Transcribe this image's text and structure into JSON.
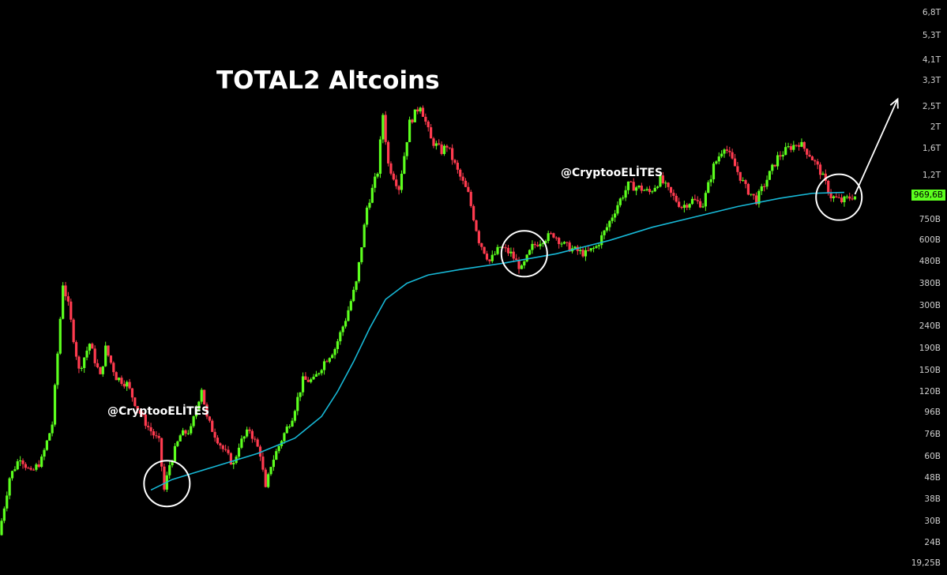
{
  "title": "TOTAL2 Altcoins",
  "watermarks": [
    "@CryptooELİTES",
    "@CryptooELİTES"
  ],
  "colors": {
    "background": "#000000",
    "up_candle": "#5cff1e",
    "down_candle": "#ff3b4f",
    "moving_average": "#17b8d6",
    "annotation": "#ffffff",
    "price_tag": "#5cff1e"
  },
  "chart_data": {
    "type": "candlestick",
    "scale": "log",
    "ylim": [
      17000000000,
      7500000000000
    ],
    "y_ticks": [
      {
        "value": 6800000000000,
        "label": "6,8T"
      },
      {
        "value": 5300000000000,
        "label": "5,3T"
      },
      {
        "value": 4100000000000,
        "label": "4,1T"
      },
      {
        "value": 3300000000000,
        "label": "3,3T"
      },
      {
        "value": 2500000000000,
        "label": "2,5T"
      },
      {
        "value": 2000000000000,
        "label": "2T"
      },
      {
        "value": 1600000000000,
        "label": "1,6T"
      },
      {
        "value": 1200000000000,
        "label": "1,2T"
      },
      {
        "value": 750000000000,
        "label": "750B"
      },
      {
        "value": 600000000000,
        "label": "600B"
      },
      {
        "value": 480000000000,
        "label": "480B"
      },
      {
        "value": 380000000000,
        "label": "380B"
      },
      {
        "value": 300000000000,
        "label": "300B"
      },
      {
        "value": 240000000000,
        "label": "240B"
      },
      {
        "value": 190000000000,
        "label": "190B"
      },
      {
        "value": 150000000000,
        "label": "150B"
      },
      {
        "value": 120000000000,
        "label": "120B"
      },
      {
        "value": 96000000000,
        "label": "96B"
      },
      {
        "value": 76000000000,
        "label": "76B"
      },
      {
        "value": 60000000000,
        "label": "60B"
      },
      {
        "value": 48000000000,
        "label": "48B"
      },
      {
        "value": 38000000000,
        "label": "38B"
      },
      {
        "value": 30000000000,
        "label": "30B"
      },
      {
        "value": 24000000000,
        "label": "24B"
      },
      {
        "value": 19250000000,
        "label": "19,25B"
      }
    ],
    "current_price": {
      "value": 969600000000,
      "label": "969,6B"
    },
    "price_path": [
      [
        0,
        26
      ],
      [
        2,
        48
      ],
      [
        4,
        60
      ],
      [
        6,
        50
      ],
      [
        8,
        58
      ],
      [
        10,
        85
      ],
      [
        12,
        380
      ],
      [
        13,
        300
      ],
      [
        15,
        150
      ],
      [
        17,
        200
      ],
      [
        19,
        140
      ],
      [
        20,
        190
      ],
      [
        22,
        140
      ],
      [
        24,
        130
      ],
      [
        26,
        100
      ],
      [
        28,
        82
      ],
      [
        30,
        70
      ],
      [
        31,
        42
      ],
      [
        32,
        55
      ],
      [
        34,
        75
      ],
      [
        36,
        80
      ],
      [
        38,
        125
      ],
      [
        39,
        90
      ],
      [
        40,
        80
      ],
      [
        42,
        65
      ],
      [
        44,
        55
      ],
      [
        45,
        68
      ],
      [
        47,
        80
      ],
      [
        49,
        62
      ],
      [
        50,
        42
      ],
      [
        51,
        55
      ],
      [
        53,
        72
      ],
      [
        55,
        92
      ],
      [
        57,
        135
      ],
      [
        59,
        135
      ],
      [
        61,
        165
      ],
      [
        63,
        190
      ],
      [
        65,
        260
      ],
      [
        67,
        380
      ],
      [
        69,
        850
      ],
      [
        71,
        1250
      ],
      [
        72,
        2300
      ],
      [
        73,
        1350
      ],
      [
        75,
        1050
      ],
      [
        77,
        2100
      ],
      [
        79,
        2550
      ],
      [
        81,
        1750
      ],
      [
        83,
        1550
      ],
      [
        84,
        1650
      ],
      [
        86,
        1250
      ],
      [
        88,
        980
      ],
      [
        90,
        600
      ],
      [
        92,
        480
      ],
      [
        94,
        560
      ],
      [
        96,
        520
      ],
      [
        98,
        440
      ],
      [
        100,
        560
      ],
      [
        102,
        610
      ],
      [
        104,
        640
      ],
      [
        106,
        570
      ],
      [
        108,
        540
      ],
      [
        110,
        520
      ],
      [
        112,
        560
      ],
      [
        114,
        690
      ],
      [
        116,
        880
      ],
      [
        118,
        1080
      ],
      [
        120,
        1050
      ],
      [
        122,
        1000
      ],
      [
        124,
        1150
      ],
      [
        126,
        980
      ],
      [
        128,
        860
      ],
      [
        130,
        920
      ],
      [
        132,
        880
      ],
      [
        134,
        1320
      ],
      [
        136,
        1650
      ],
      [
        138,
        1320
      ],
      [
        140,
        1050
      ],
      [
        142,
        920
      ],
      [
        144,
        1150
      ],
      [
        146,
        1450
      ],
      [
        148,
        1600
      ],
      [
        150,
        1700
      ],
      [
        152,
        1500
      ],
      [
        154,
        1250
      ],
      [
        156,
        960
      ],
      [
        158,
        910
      ],
      [
        160,
        960
      ]
    ],
    "moving_average": [
      [
        28,
        42
      ],
      [
        32,
        47
      ],
      [
        40,
        54
      ],
      [
        48,
        62
      ],
      [
        55,
        73
      ],
      [
        60,
        92
      ],
      [
        63,
        120
      ],
      [
        66,
        165
      ],
      [
        69,
        235
      ],
      [
        72,
        320
      ],
      [
        76,
        380
      ],
      [
        80,
        415
      ],
      [
        86,
        440
      ],
      [
        94,
        470
      ],
      [
        104,
        520
      ],
      [
        114,
        600
      ],
      [
        122,
        690
      ],
      [
        130,
        770
      ],
      [
        138,
        860
      ],
      [
        146,
        940
      ],
      [
        152,
        990
      ],
      [
        158,
        1000
      ]
    ],
    "annotations": [
      {
        "type": "circle",
        "at": [
          31,
          45
        ]
      },
      {
        "type": "circle",
        "at": [
          98,
          520
        ]
      },
      {
        "type": "circle",
        "at": [
          157,
          950
        ]
      },
      {
        "type": "arrow",
        "from": [
          160,
          980
        ],
        "to": [
          168,
          2700
        ]
      }
    ]
  }
}
